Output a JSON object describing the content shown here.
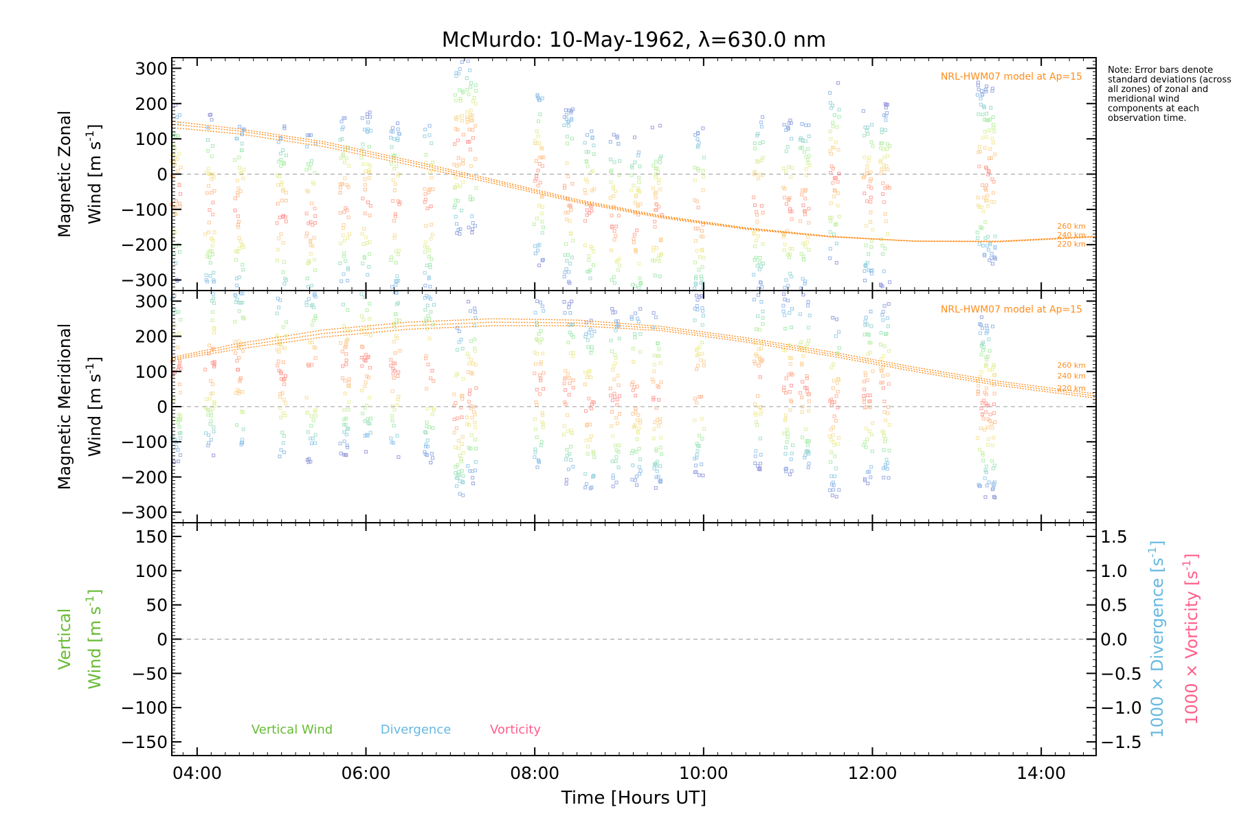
{
  "title": "McMurdo: 10-May-1962, λ=630.0 nm",
  "note": "Note: Error bars denote standard deviations (across all zones) of zonal and meridional wind components at each observation time.",
  "colors": {
    "model": "#ff8c1a",
    "zero_line": "#999999",
    "vertical": "#66bb33",
    "divergence": "#66b8e0",
    "vorticity": "#ff5e8a",
    "scatter_low": "#9999dd",
    "scatter_high": "#ff9999"
  },
  "chart_data": [
    {
      "type": "scatter",
      "panel": "zonal",
      "ylabel_line1": "Magnetic Zonal",
      "ylabel_line2": "Wind [m s",
      "ylabel_sup": "-1",
      "ylabel_end": "]",
      "xlim": [
        3.7,
        14.65
      ],
      "ylim": [
        -330,
        330
      ],
      "yticks": [
        300,
        200,
        100,
        0,
        -100,
        -200,
        -300
      ],
      "model_label": "NRL-HWM07 model at Ap=15",
      "model_altitudes": [
        "260 km",
        "240 km",
        "220 km"
      ],
      "model_x": [
        3.7,
        4.5,
        5.5,
        6.5,
        7.5,
        8.5,
        9.5,
        10.5,
        11.5,
        12.5,
        13.5,
        14.65
      ],
      "model_series": [
        {
          "name": "260 km",
          "values": [
            150,
            128,
            92,
            40,
            -15,
            -72,
            -118,
            -152,
            -176,
            -190,
            -192,
            -178
          ]
        },
        {
          "name": "240 km",
          "values": [
            142,
            122,
            86,
            34,
            -20,
            -76,
            -121,
            -154,
            -177,
            -190,
            -191,
            -177
          ]
        },
        {
          "name": "220 km",
          "values": [
            132,
            114,
            78,
            27,
            -26,
            -80,
            -124,
            -156,
            -178,
            -190,
            -190,
            -176
          ]
        }
      ],
      "observation_times": [
        3.75,
        4.15,
        4.5,
        5.0,
        5.35,
        5.75,
        6.0,
        6.35,
        6.75,
        7.1,
        7.25,
        8.05,
        8.4,
        8.65,
        8.95,
        9.2,
        9.45,
        9.95,
        10.65,
        11.0,
        11.2,
        11.55,
        11.95,
        12.15,
        13.3,
        13.4
      ],
      "observation_centers": [
        -50,
        -90,
        -100,
        -120,
        -130,
        -80,
        -80,
        -100,
        -90,
        80,
        90,
        0,
        -60,
        -110,
        -140,
        -150,
        -120,
        -120,
        -80,
        -100,
        -90,
        0,
        -60,
        -60,
        0,
        0
      ]
    },
    {
      "type": "scatter",
      "panel": "meridional",
      "ylabel_line1": "Magnetic Meridional",
      "ylabel_line2": "Wind [m s",
      "ylabel_sup": "-1",
      "ylabel_end": "]",
      "xlim": [
        3.7,
        14.65
      ],
      "ylim": [
        -330,
        330
      ],
      "yticks": [
        300,
        200,
        100,
        0,
        -100,
        -200,
        -300
      ],
      "model_label": "NRL-HWM07 model at Ap=15",
      "model_altitudes": [
        "260 km",
        "240 km",
        "220 km"
      ],
      "model_x": [
        3.7,
        4.5,
        5.5,
        6.5,
        7.5,
        8.5,
        9.5,
        10.5,
        11.5,
        12.5,
        13.5,
        14.65
      ],
      "model_series": [
        {
          "name": "260 km",
          "values": [
            140,
            180,
            218,
            240,
            250,
            246,
            228,
            196,
            156,
            112,
            72,
            36
          ]
        },
        {
          "name": "240 km",
          "values": [
            136,
            172,
            208,
            230,
            240,
            238,
            222,
            190,
            150,
            106,
            66,
            30
          ]
        },
        {
          "name": "220 km",
          "values": [
            132,
            164,
            198,
            220,
            230,
            230,
            216,
            184,
            144,
            100,
            60,
            24
          ]
        }
      ],
      "observation_times": [
        3.75,
        4.15,
        4.5,
        5.0,
        5.35,
        5.75,
        6.0,
        6.35,
        6.75,
        7.1,
        7.25,
        8.05,
        8.4,
        8.65,
        8.95,
        9.2,
        9.45,
        9.95,
        10.65,
        11.0,
        11.2,
        11.55,
        11.95,
        12.15,
        13.3,
        13.4
      ],
      "observation_centers": [
        100,
        120,
        110,
        90,
        100,
        120,
        130,
        110,
        100,
        -20,
        40,
        60,
        40,
        0,
        20,
        30,
        20,
        60,
        80,
        60,
        60,
        0,
        40,
        40,
        0,
        0
      ]
    },
    {
      "type": "line",
      "panel": "vertical",
      "ylabel_line1": "Vertical",
      "ylabel_line2": "Wind [m s",
      "ylabel_sup": "-1",
      "ylabel_end": "]",
      "xlabel": "Time [Hours UT]",
      "xlim": [
        3.7,
        14.65
      ],
      "xticks": [
        4,
        6,
        8,
        10,
        12,
        14
      ],
      "xtick_labels": [
        "04:00",
        "06:00",
        "08:00",
        "10:00",
        "12:00",
        "14:00"
      ],
      "ylim": [
        -170,
        170
      ],
      "yticks": [
        150,
        100,
        50,
        0,
        -50,
        -100,
        -150
      ],
      "y2lim": [
        -1.7,
        1.7
      ],
      "y2ticks": [
        1.5,
        1.0,
        0.5,
        0.0,
        -0.5,
        -1.0,
        -1.5
      ],
      "y2tick_labels": [
        "1.5",
        "1.0",
        "0.5",
        "0.0",
        "−0.5",
        "−1.0",
        "−1.5"
      ],
      "y2label_div": "1000 × Divergence [s",
      "y2label_vor": "1000 × Vorticity [s",
      "legend": [
        "Vertical Wind",
        "Divergence",
        "Vorticity"
      ]
    }
  ]
}
